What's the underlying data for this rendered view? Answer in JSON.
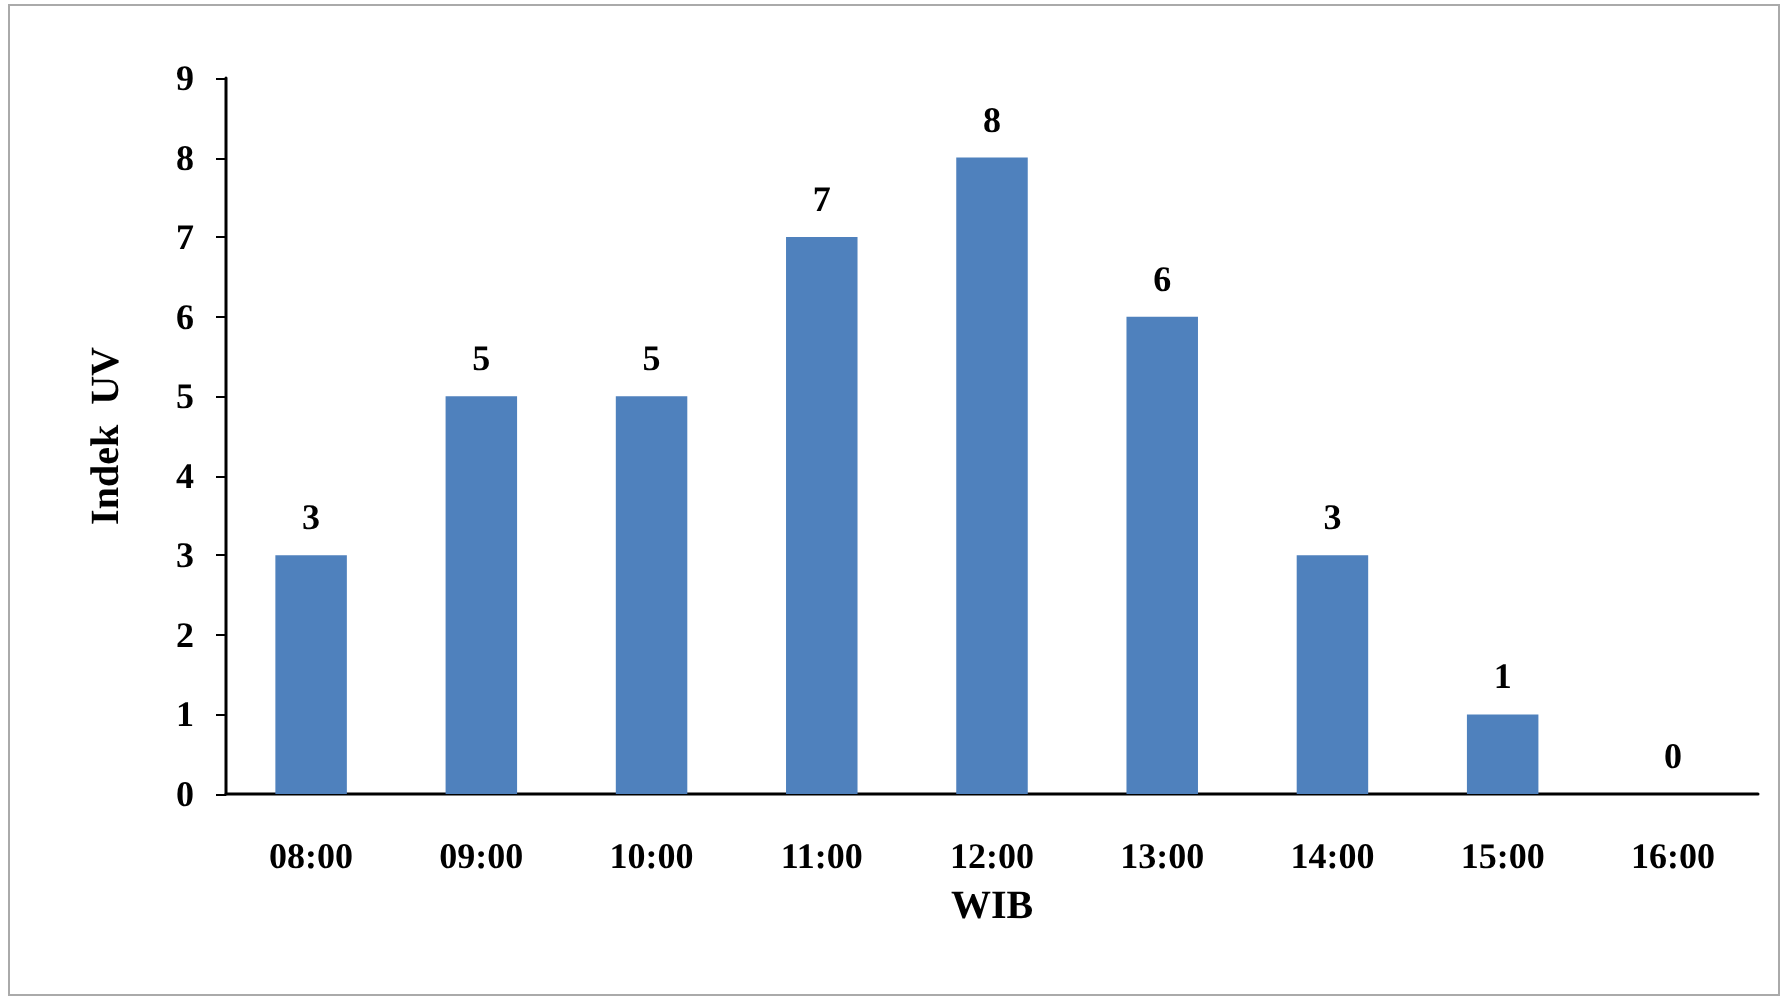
{
  "chart_data": {
    "type": "bar",
    "xlabel": "WIB",
    "ylabel": "Indek  UV",
    "categories": [
      "08:00",
      "09:00",
      "10:00",
      "11:00",
      "12:00",
      "13:00",
      "14:00",
      "15:00",
      "16:00"
    ],
    "values": [
      3,
      5,
      5,
      7,
      8,
      6,
      3,
      1,
      0
    ],
    "color": "#4f81bd",
    "ylim": [
      0,
      9
    ],
    "yticks": [
      0,
      1,
      2,
      3,
      4,
      5,
      6,
      7,
      8,
      9
    ],
    "grid": false,
    "data_labels": true
  }
}
